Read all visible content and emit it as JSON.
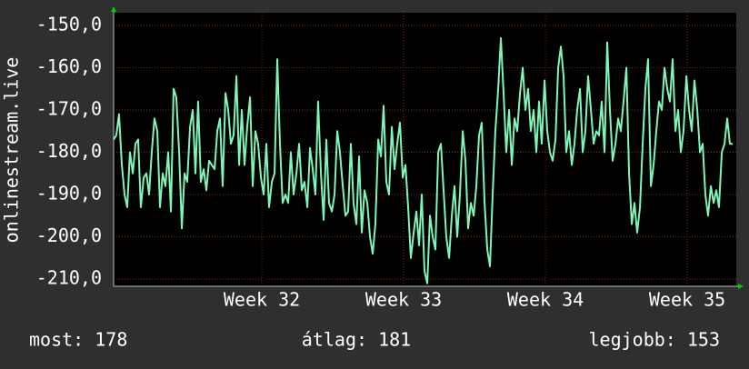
{
  "chart_data": {
    "type": "line",
    "y_label": "onlinestream.live",
    "xlim": [
      30.955,
      35.346
    ],
    "xticks": [
      {
        "value": 32,
        "label": "Week 32"
      },
      {
        "value": 33,
        "label": "Week 33"
      },
      {
        "value": 34,
        "label": "Week 34"
      },
      {
        "value": 35,
        "label": "Week 35"
      }
    ],
    "ylim": [
      -211.7,
      -147
    ],
    "yticks": [
      {
        "value": -210,
        "label": "-210,0"
      },
      {
        "value": -200,
        "label": "-200,0"
      },
      {
        "value": -190,
        "label": "-190,0"
      },
      {
        "value": -180,
        "label": "-180,0"
      },
      {
        "value": -170,
        "label": "-170,0"
      },
      {
        "value": -160,
        "label": "-160,0"
      },
      {
        "value": -150,
        "label": "-150,0"
      }
    ],
    "grid": true,
    "x": [
      30.955,
      30.974,
      30.993,
      31.013,
      31.032,
      31.051,
      31.07,
      31.09,
      31.109,
      31.128,
      31.147,
      31.167,
      31.186,
      31.205,
      31.224,
      31.243,
      31.263,
      31.282,
      31.301,
      31.32,
      31.34,
      31.359,
      31.378,
      31.397,
      31.417,
      31.436,
      31.455,
      31.474,
      31.494,
      31.513,
      31.532,
      31.551,
      31.57,
      31.59,
      31.609,
      31.628,
      31.647,
      31.667,
      31.686,
      31.705,
      31.724,
      31.744,
      31.763,
      31.782,
      31.801,
      31.821,
      31.84,
      31.859,
      31.878,
      31.897,
      31.917,
      31.936,
      31.955,
      31.974,
      31.994,
      32.013,
      32.032,
      32.051,
      32.071,
      32.09,
      32.109,
      32.128,
      32.147,
      32.167,
      32.186,
      32.205,
      32.224,
      32.244,
      32.263,
      32.282,
      32.301,
      32.321,
      32.34,
      32.359,
      32.378,
      32.397,
      32.417,
      32.436,
      32.455,
      32.474,
      32.494,
      32.513,
      32.532,
      32.551,
      32.571,
      32.59,
      32.609,
      32.628,
      32.647,
      32.667,
      32.686,
      32.705,
      32.724,
      32.744,
      32.763,
      32.782,
      32.801,
      32.821,
      32.84,
      32.859,
      32.878,
      32.897,
      32.917,
      32.936,
      32.955,
      32.974,
      32.994,
      33.013,
      33.032,
      33.051,
      33.071,
      33.09,
      33.109,
      33.128,
      33.147,
      33.167,
      33.186,
      33.205,
      33.224,
      33.244,
      33.263,
      33.282,
      33.301,
      33.321,
      33.34,
      33.359,
      33.378,
      33.397,
      33.417,
      33.436,
      33.455,
      33.474,
      33.494,
      33.513,
      33.532,
      33.551,
      33.571,
      33.59,
      33.609,
      33.628,
      33.647,
      33.667,
      33.686,
      33.705,
      33.724,
      33.744,
      33.763,
      33.782,
      33.801,
      33.821,
      33.84,
      33.859,
      33.878,
      33.897,
      33.917,
      33.936,
      33.955,
      33.974,
      33.994,
      34.013,
      34.032,
      34.051,
      34.071,
      34.09,
      34.109,
      34.128,
      34.147,
      34.167,
      34.186,
      34.205,
      34.224,
      34.244,
      34.263,
      34.282,
      34.301,
      34.321,
      34.34,
      34.359,
      34.378,
      34.397,
      34.417,
      34.436,
      34.455,
      34.474,
      34.494,
      34.513,
      34.532,
      34.551,
      34.571,
      34.59,
      34.609,
      34.628,
      34.647,
      34.667,
      34.686,
      34.705,
      34.724,
      34.744,
      34.763,
      34.782,
      34.801,
      34.821,
      34.84,
      34.859,
      34.878,
      34.897,
      34.917,
      34.936,
      34.955,
      34.974,
      34.994,
      35.013,
      35.032,
      35.051,
      35.071,
      35.09,
      35.109,
      35.128,
      35.147,
      35.167,
      35.186,
      35.205,
      35.224,
      35.244,
      35.263,
      35.282,
      35.301,
      35.321
    ],
    "series": [
      {
        "color": "#7ff5b8",
        "values": [
          -177,
          -176,
          -171,
          -183,
          -190,
          -193,
          -180,
          -185,
          -178,
          -177,
          -193,
          -186,
          -185,
          -190,
          -180,
          -172,
          -175,
          -193,
          -185,
          -188,
          -180,
          -194,
          -165,
          -167,
          -180,
          -198,
          -185,
          -187,
          -174,
          -170,
          -185,
          -168,
          -187,
          -184,
          -189,
          -182,
          -183,
          -184,
          -175,
          -172,
          -188,
          -166,
          -170,
          -178,
          -176,
          -162,
          -183,
          -170,
          -183,
          -174,
          -167,
          -188,
          -175,
          -178,
          -186,
          -190,
          -178,
          -193,
          -187,
          -185,
          -158,
          -178,
          -192,
          -190,
          -192,
          -180,
          -190,
          -185,
          -178,
          -189,
          -187,
          -193,
          -179,
          -184,
          -190,
          -168,
          -185,
          -196,
          -177,
          -192,
          -194,
          -190,
          -175,
          -180,
          -188,
          -195,
          -194,
          -178,
          -192,
          -197,
          -181,
          -199,
          -189,
          -192,
          -200,
          -204,
          -197,
          -177,
          -181,
          -169,
          -187,
          -190,
          -174,
          -184,
          -178,
          -173,
          -186,
          -183,
          -193,
          -205,
          -199,
          -194,
          -202,
          -190,
          -208,
          -211,
          -195,
          -200,
          -203,
          -180,
          -178,
          -189,
          -200,
          -205,
          -195,
          -188,
          -200,
          -190,
          -175,
          -182,
          -198,
          -192,
          -195,
          -188,
          -176,
          -173,
          -192,
          -203,
          -207,
          -190,
          -175,
          -165,
          -153,
          -166,
          -180,
          -170,
          -183,
          -172,
          -175,
          -166,
          -160,
          -170,
          -165,
          -175,
          -170,
          -180,
          -168,
          -178,
          -163,
          -175,
          -180,
          -182,
          -177,
          -160,
          -155,
          -162,
          -180,
          -175,
          -183,
          -178,
          -170,
          -165,
          -180,
          -175,
          -162,
          -170,
          -178,
          -175,
          -176,
          -168,
          -180,
          -154,
          -170,
          -182,
          -178,
          -172,
          -175,
          -168,
          -160,
          -185,
          -197,
          -192,
          -199,
          -193,
          -178,
          -165,
          -158,
          -188,
          -183,
          -175,
          -168,
          -170,
          -160,
          -165,
          -168,
          -158,
          -175,
          -170,
          -180,
          -175,
          -162,
          -170,
          -175,
          -163,
          -170,
          -180,
          -178,
          -190,
          -195,
          -188,
          -192,
          -189,
          -193,
          -180,
          -178,
          -172,
          -178,
          -178
        ]
      }
    ]
  },
  "footer": {
    "current": "most: 178",
    "average": "átlag: 181",
    "best": "legjobb: 153"
  }
}
